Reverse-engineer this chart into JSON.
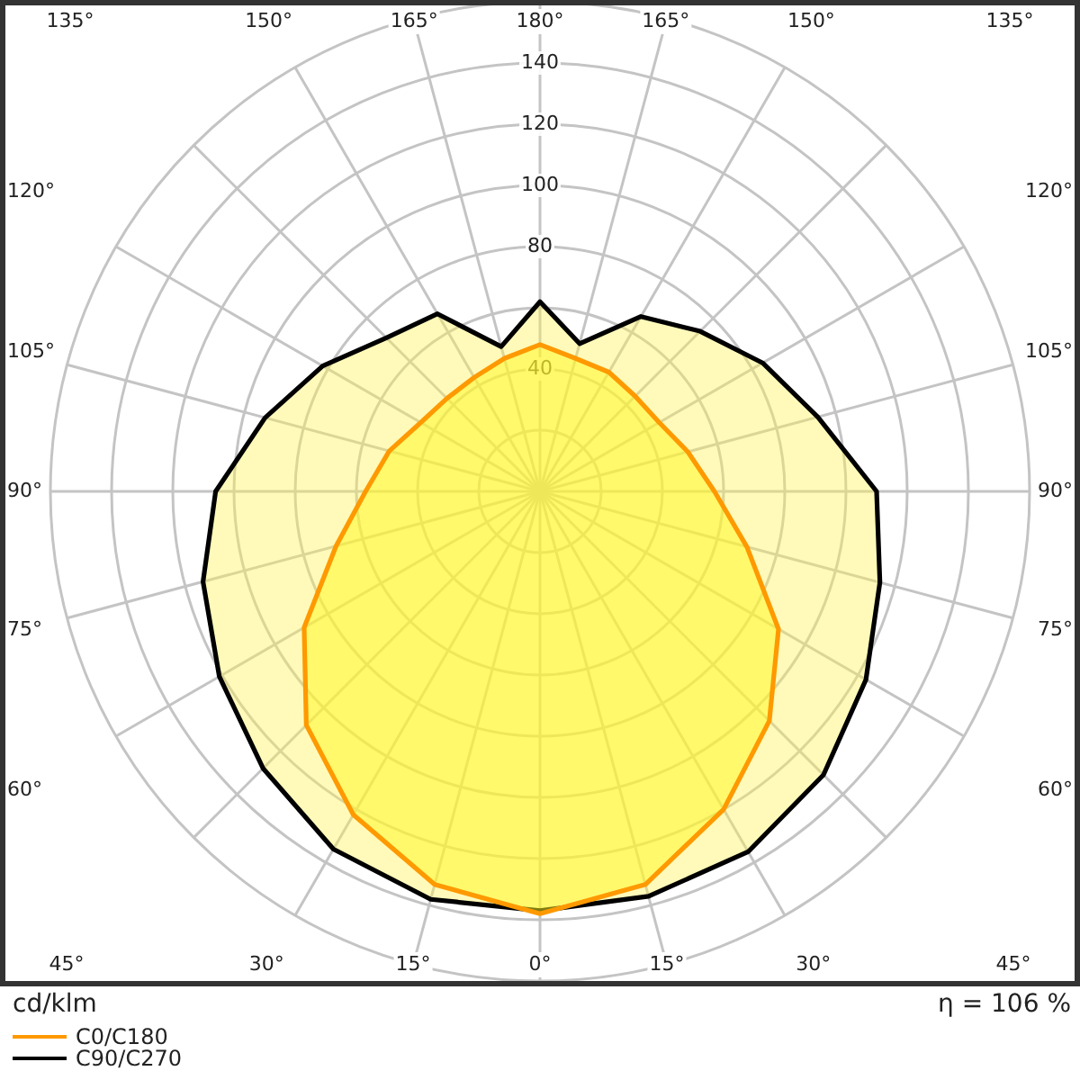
{
  "chart_data": {
    "type": "radar",
    "categories": [
      "180°",
      "165°",
      "150°",
      "135°",
      "120°",
      "105°",
      "90°",
      "75°",
      "60°",
      "45°",
      "30°",
      "15°",
      "0°",
      "15°",
      "30°",
      "45°",
      "60°",
      "75°",
      "90°",
      "105°",
      "120°",
      "135°",
      "150°",
      "165°"
    ],
    "series": [
      {
        "name": "C0/C180",
        "color": "#ff9900",
        "values": [
          48,
          45,
          45,
          44,
          45,
          50,
          57,
          70,
          90,
          106,
          120,
          133,
          138,
          133,
          122,
          108,
          89,
          69,
          57,
          51,
          45,
          43,
          43,
          45
        ]
      },
      {
        "name": "C90/C270",
        "color": "#000000",
        "values": [
          62,
          50,
          66,
          74,
          84,
          94,
          110,
          115,
          123,
          131,
          136,
          137,
          137,
          138,
          135,
          128,
          121,
          114,
          106,
          93,
          82,
          71,
          67,
          49
        ]
      }
    ],
    "ylim": [
      0,
      160
    ],
    "yticks": [
      40,
      80,
      100,
      120,
      140
    ],
    "ylabel": "cd/klm",
    "annotations": [
      "η = 106 %"
    ],
    "grid": true,
    "legend": "bottom left"
  }
}
